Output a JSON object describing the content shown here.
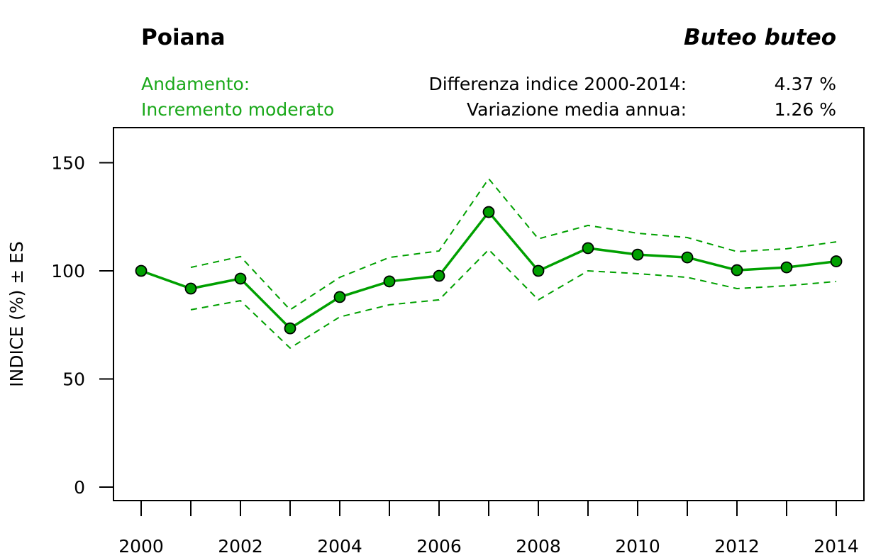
{
  "header": {
    "common_name": "Poiana",
    "scientific_name": "Buteo buteo",
    "trend_label": "Andamento:",
    "trend_value": "Incremento moderato",
    "diff_label": "Differenza indice 2000-2014:",
    "diff_value": "4.37 %",
    "annual_label": "Variazione media annua:",
    "annual_value": "1.26 %"
  },
  "colors": {
    "series": "#00a000",
    "trend_text": "#1aa81a",
    "axis": "#000000"
  },
  "chart_data": {
    "type": "line",
    "title": "Poiana",
    "subtitle": "Buteo buteo",
    "xlabel": "",
    "ylabel": "INDICE (%) ± ES",
    "xlim": [
      1999.45,
      2014.55
    ],
    "ylim": [
      -6,
      166
    ],
    "grid": false,
    "x": [
      2000,
      2001,
      2002,
      2003,
      2004,
      2005,
      2006,
      2007,
      2008,
      2009,
      2010,
      2011,
      2012,
      2013,
      2014
    ],
    "x_ticks": [
      2000,
      2001,
      2002,
      2003,
      2004,
      2005,
      2006,
      2007,
      2008,
      2009,
      2010,
      2011,
      2012,
      2013,
      2014
    ],
    "x_tick_labels": [
      "2000",
      "2002",
      "2004",
      "2006",
      "2008",
      "2010",
      "2012",
      "2014"
    ],
    "x_tick_label_values": [
      2000,
      2002,
      2004,
      2006,
      2008,
      2010,
      2012,
      2014
    ],
    "y_ticks": [
      0,
      50,
      100,
      150
    ],
    "y_tick_labels": [
      "0",
      "50",
      "100",
      "150"
    ],
    "series": [
      {
        "name": "Indice",
        "values": [
          100,
          91.8,
          96.4,
          73.4,
          87.9,
          95.1,
          97.7,
          127.2,
          100,
          110.5,
          107.5,
          106.2,
          100.3,
          101.6,
          104.4
        ]
      },
      {
        "name": "Indice + ES",
        "x": [
          2001,
          2002,
          2003,
          2004,
          2005,
          2006,
          2007,
          2008,
          2009,
          2010,
          2011,
          2012,
          2013,
          2014
        ],
        "values": [
          101.6,
          106.6,
          82.0,
          97.0,
          106.2,
          109.2,
          142.6,
          114.8,
          121.0,
          117.4,
          115.4,
          108.9,
          110.2,
          113.4
        ]
      },
      {
        "name": "Indice - ES",
        "x": [
          2001,
          2002,
          2003,
          2004,
          2005,
          2006,
          2007,
          2008,
          2009,
          2010,
          2011,
          2012,
          2013,
          2014
        ],
        "values": [
          82.0,
          86.2,
          64.3,
          78.7,
          84.3,
          86.6,
          109.8,
          86.6,
          100.0,
          98.7,
          97.0,
          91.8,
          93.1,
          95.1
        ]
      }
    ]
  }
}
